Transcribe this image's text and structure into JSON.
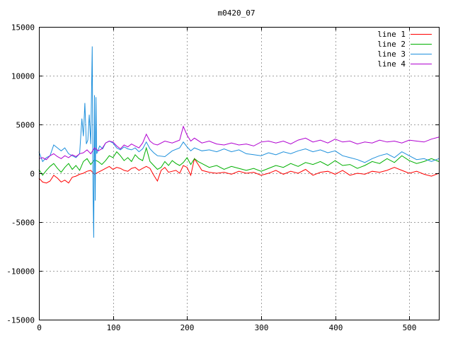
{
  "chart_data": {
    "type": "line",
    "title": "m0420_07",
    "xlabel": "",
    "ylabel": "",
    "xlim": [
      0,
      540
    ],
    "ylim": [
      -15000,
      15000
    ],
    "xticks": [
      0,
      100,
      200,
      300,
      400,
      500
    ],
    "yticks": [
      -15000,
      -10000,
      -5000,
      0,
      5000,
      10000,
      15000
    ],
    "grid": true,
    "legend_position": "top-right",
    "series": [
      {
        "name": "line 1",
        "color": "#ff0000",
        "points": [
          [
            0,
            -500
          ],
          [
            5,
            -900
          ],
          [
            10,
            -1000
          ],
          [
            15,
            -800
          ],
          [
            20,
            -200
          ],
          [
            25,
            -500
          ],
          [
            30,
            -900
          ],
          [
            35,
            -700
          ],
          [
            40,
            -1000
          ],
          [
            45,
            -400
          ],
          [
            50,
            -300
          ],
          [
            55,
            -100
          ],
          [
            60,
            0
          ],
          [
            65,
            200
          ],
          [
            70,
            300
          ],
          [
            75,
            -100
          ],
          [
            80,
            100
          ],
          [
            85,
            300
          ],
          [
            90,
            500
          ],
          [
            95,
            700
          ],
          [
            100,
            400
          ],
          [
            105,
            600
          ],
          [
            110,
            500
          ],
          [
            115,
            300
          ],
          [
            120,
            200
          ],
          [
            125,
            500
          ],
          [
            130,
            600
          ],
          [
            135,
            300
          ],
          [
            140,
            500
          ],
          [
            145,
            700
          ],
          [
            150,
            500
          ],
          [
            155,
            -200
          ],
          [
            160,
            -800
          ],
          [
            165,
            300
          ],
          [
            170,
            600
          ],
          [
            175,
            100
          ],
          [
            180,
            200
          ],
          [
            185,
            300
          ],
          [
            190,
            0
          ],
          [
            195,
            800
          ],
          [
            200,
            600
          ],
          [
            205,
            -200
          ],
          [
            210,
            1500
          ],
          [
            215,
            900
          ],
          [
            220,
            300
          ],
          [
            230,
            100
          ],
          [
            240,
            0
          ],
          [
            250,
            100
          ],
          [
            260,
            -100
          ],
          [
            270,
            200
          ],
          [
            280,
            0
          ],
          [
            290,
            100
          ],
          [
            300,
            -200
          ],
          [
            310,
            0
          ],
          [
            320,
            300
          ],
          [
            330,
            -100
          ],
          [
            340,
            200
          ],
          [
            350,
            0
          ],
          [
            360,
            400
          ],
          [
            370,
            -200
          ],
          [
            380,
            100
          ],
          [
            390,
            200
          ],
          [
            400,
            -100
          ],
          [
            410,
            300
          ],
          [
            420,
            -200
          ],
          [
            430,
            0
          ],
          [
            440,
            -100
          ],
          [
            450,
            200
          ],
          [
            460,
            100
          ],
          [
            470,
            300
          ],
          [
            480,
            600
          ],
          [
            490,
            300
          ],
          [
            500,
            0
          ],
          [
            510,
            200
          ],
          [
            520,
            -100
          ],
          [
            530,
            -300
          ],
          [
            540,
            0
          ]
        ]
      },
      {
        "name": "line 2",
        "color": "#00b000",
        "points": [
          [
            0,
            400
          ],
          [
            5,
            -200
          ],
          [
            10,
            300
          ],
          [
            15,
            700
          ],
          [
            20,
            1000
          ],
          [
            25,
            500
          ],
          [
            30,
            100
          ],
          [
            35,
            600
          ],
          [
            40,
            1000
          ],
          [
            45,
            400
          ],
          [
            50,
            800
          ],
          [
            55,
            300
          ],
          [
            60,
            1200
          ],
          [
            65,
            1500
          ],
          [
            70,
            900
          ],
          [
            75,
            1400
          ],
          [
            80,
            1200
          ],
          [
            85,
            900
          ],
          [
            90,
            1300
          ],
          [
            95,
            1800
          ],
          [
            100,
            1600
          ],
          [
            105,
            2200
          ],
          [
            110,
            1800
          ],
          [
            115,
            1300
          ],
          [
            120,
            1600
          ],
          [
            125,
            1200
          ],
          [
            130,
            1900
          ],
          [
            135,
            1500
          ],
          [
            140,
            1300
          ],
          [
            145,
            2600
          ],
          [
            150,
            1200
          ],
          [
            155,
            800
          ],
          [
            160,
            400
          ],
          [
            165,
            600
          ],
          [
            170,
            1200
          ],
          [
            175,
            800
          ],
          [
            180,
            1300
          ],
          [
            185,
            1000
          ],
          [
            190,
            800
          ],
          [
            195,
            1100
          ],
          [
            200,
            1600
          ],
          [
            205,
            900
          ],
          [
            210,
            1500
          ],
          [
            215,
            1200
          ],
          [
            220,
            1000
          ],
          [
            230,
            600
          ],
          [
            240,
            800
          ],
          [
            250,
            400
          ],
          [
            260,
            700
          ],
          [
            270,
            500
          ],
          [
            280,
            300
          ],
          [
            290,
            500
          ],
          [
            300,
            200
          ],
          [
            310,
            500
          ],
          [
            320,
            800
          ],
          [
            330,
            600
          ],
          [
            340,
            1000
          ],
          [
            350,
            700
          ],
          [
            360,
            1100
          ],
          [
            370,
            900
          ],
          [
            380,
            1200
          ],
          [
            390,
            800
          ],
          [
            400,
            1300
          ],
          [
            410,
            800
          ],
          [
            420,
            900
          ],
          [
            430,
            500
          ],
          [
            440,
            800
          ],
          [
            450,
            1200
          ],
          [
            460,
            1000
          ],
          [
            470,
            1500
          ],
          [
            480,
            1100
          ],
          [
            490,
            1800
          ],
          [
            500,
            1300
          ],
          [
            510,
            1000
          ],
          [
            520,
            1200
          ],
          [
            530,
            1500
          ],
          [
            540,
            1200
          ]
        ]
      },
      {
        "name": "line 3",
        "color": "#1e90dc",
        "points": [
          [
            0,
            2200
          ],
          [
            5,
            1200
          ],
          [
            10,
            1600
          ],
          [
            15,
            1800
          ],
          [
            20,
            2900
          ],
          [
            25,
            2600
          ],
          [
            30,
            2300
          ],
          [
            35,
            2600
          ],
          [
            40,
            2000
          ],
          [
            45,
            1800
          ],
          [
            50,
            1600
          ],
          [
            55,
            2000
          ],
          [
            58,
            5600
          ],
          [
            60,
            3800
          ],
          [
            62,
            7200
          ],
          [
            64,
            3000
          ],
          [
            66,
            3400
          ],
          [
            68,
            6000
          ],
          [
            70,
            3000
          ],
          [
            72,
            13000
          ],
          [
            73,
            -1500
          ],
          [
            74,
            -6600
          ],
          [
            75,
            8000
          ],
          [
            76,
            -2800
          ],
          [
            77,
            7800
          ],
          [
            78,
            2000
          ],
          [
            82,
            2800
          ],
          [
            86,
            2500
          ],
          [
            90,
            3100
          ],
          [
            95,
            3300
          ],
          [
            100,
            3100
          ],
          [
            105,
            2600
          ],
          [
            110,
            2400
          ],
          [
            115,
            2700
          ],
          [
            120,
            2500
          ],
          [
            125,
            2400
          ],
          [
            130,
            2600
          ],
          [
            135,
            2200
          ],
          [
            140,
            2500
          ],
          [
            145,
            3200
          ],
          [
            150,
            2500
          ],
          [
            155,
            2100
          ],
          [
            160,
            1800
          ],
          [
            170,
            1700
          ],
          [
            180,
            2300
          ],
          [
            190,
            2600
          ],
          [
            195,
            3200
          ],
          [
            200,
            2700
          ],
          [
            205,
            2300
          ],
          [
            210,
            2600
          ],
          [
            220,
            2300
          ],
          [
            230,
            2400
          ],
          [
            240,
            2200
          ],
          [
            250,
            2500
          ],
          [
            260,
            2200
          ],
          [
            270,
            2400
          ],
          [
            280,
            2000
          ],
          [
            290,
            1900
          ],
          [
            300,
            1800
          ],
          [
            310,
            2100
          ],
          [
            320,
            1900
          ],
          [
            330,
            2200
          ],
          [
            340,
            2000
          ],
          [
            350,
            2300
          ],
          [
            360,
            2500
          ],
          [
            370,
            2200
          ],
          [
            380,
            2400
          ],
          [
            390,
            2100
          ],
          [
            400,
            2300
          ],
          [
            410,
            1800
          ],
          [
            420,
            1600
          ],
          [
            430,
            1400
          ],
          [
            440,
            1100
          ],
          [
            450,
            1500
          ],
          [
            460,
            1800
          ],
          [
            470,
            2000
          ],
          [
            480,
            1600
          ],
          [
            490,
            2200
          ],
          [
            500,
            1800
          ],
          [
            510,
            1400
          ],
          [
            520,
            1500
          ],
          [
            530,
            1200
          ],
          [
            540,
            1500
          ]
        ]
      },
      {
        "name": "line 4",
        "color": "#b000d0",
        "points": [
          [
            0,
            1500
          ],
          [
            5,
            1600
          ],
          [
            10,
            1400
          ],
          [
            15,
            1800
          ],
          [
            20,
            2000
          ],
          [
            25,
            1700
          ],
          [
            30,
            1500
          ],
          [
            35,
            1800
          ],
          [
            40,
            1600
          ],
          [
            45,
            1900
          ],
          [
            50,
            1700
          ],
          [
            55,
            2000
          ],
          [
            60,
            2100
          ],
          [
            65,
            2400
          ],
          [
            70,
            2000
          ],
          [
            75,
            2600
          ],
          [
            80,
            2300
          ],
          [
            85,
            2500
          ],
          [
            90,
            3100
          ],
          [
            95,
            3300
          ],
          [
            100,
            3200
          ],
          [
            105,
            2800
          ],
          [
            110,
            2500
          ],
          [
            115,
            2900
          ],
          [
            120,
            2700
          ],
          [
            125,
            3000
          ],
          [
            130,
            2800
          ],
          [
            135,
            2600
          ],
          [
            140,
            3100
          ],
          [
            145,
            4000
          ],
          [
            150,
            3300
          ],
          [
            155,
            3000
          ],
          [
            160,
            2900
          ],
          [
            170,
            3300
          ],
          [
            180,
            3100
          ],
          [
            190,
            3400
          ],
          [
            195,
            4800
          ],
          [
            200,
            3900
          ],
          [
            205,
            3300
          ],
          [
            210,
            3600
          ],
          [
            220,
            3100
          ],
          [
            230,
            3300
          ],
          [
            240,
            3000
          ],
          [
            250,
            2900
          ],
          [
            260,
            3100
          ],
          [
            270,
            2900
          ],
          [
            280,
            3000
          ],
          [
            290,
            2800
          ],
          [
            300,
            3200
          ],
          [
            310,
            3300
          ],
          [
            320,
            3100
          ],
          [
            330,
            3300
          ],
          [
            340,
            3000
          ],
          [
            350,
            3400
          ],
          [
            360,
            3600
          ],
          [
            370,
            3200
          ],
          [
            380,
            3400
          ],
          [
            390,
            3100
          ],
          [
            400,
            3500
          ],
          [
            410,
            3200
          ],
          [
            420,
            3300
          ],
          [
            430,
            3000
          ],
          [
            440,
            3200
          ],
          [
            450,
            3100
          ],
          [
            460,
            3400
          ],
          [
            470,
            3200
          ],
          [
            480,
            3300
          ],
          [
            490,
            3100
          ],
          [
            500,
            3400
          ],
          [
            510,
            3300
          ],
          [
            520,
            3200
          ],
          [
            530,
            3500
          ],
          [
            540,
            3700
          ]
        ]
      }
    ]
  }
}
